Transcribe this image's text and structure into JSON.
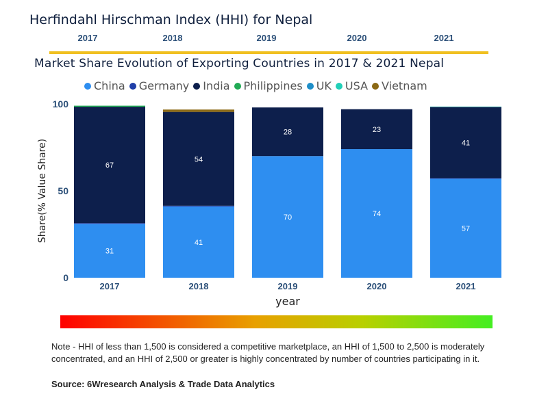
{
  "page_title": "Herfindahl Hirschman Index (HHI) for Nepal",
  "header_years": [
    "2017",
    "2018",
    "2019",
    "2020",
    "2021"
  ],
  "chart_data": {
    "type": "bar",
    "stacked": true,
    "title": "Market Share Evolution of Exporting Countries in 2017 & 2021 Nepal",
    "xlabel": "year",
    "ylabel": "Share(% Value Share)",
    "ylim": [
      0,
      100
    ],
    "yticks": [
      "0",
      "50",
      "100"
    ],
    "categories": [
      "2017",
      "2018",
      "2019",
      "2020",
      "2021"
    ],
    "legend": [
      "China",
      "Germany",
      "India",
      "Philippines",
      "UK",
      "USA",
      "Vietnam"
    ],
    "series": [
      {
        "name": "China",
        "color": "#2e8ef0",
        "values": [
          31,
          41,
          70,
          74,
          57
        ],
        "labels": [
          "31",
          "41",
          "70",
          "74",
          "57"
        ]
      },
      {
        "name": "Germany",
        "color": "#1f3fa8",
        "values": [
          0.4,
          0.4,
          0,
          0,
          0.3
        ],
        "labels": [
          "",
          "",
          "",
          "",
          ""
        ]
      },
      {
        "name": "India",
        "color": "#0d1f4c",
        "values": [
          67,
          54,
          28,
          23,
          41
        ],
        "labels": [
          "67",
          "54",
          "28",
          "23",
          "41"
        ]
      },
      {
        "name": "Philippines",
        "color": "#22aa55",
        "values": [
          0.6,
          0,
          0,
          0,
          0
        ],
        "labels": [
          "",
          "",
          "",
          "",
          ""
        ]
      },
      {
        "name": "UK",
        "color": "#1f8fc9",
        "values": [
          0,
          0,
          0,
          0,
          0
        ],
        "labels": [
          "",
          "",
          "",
          "",
          ""
        ]
      },
      {
        "name": "USA",
        "color": "#22d0b8",
        "values": [
          0,
          0,
          0,
          0,
          0.2
        ],
        "labels": [
          "",
          "",
          "",
          "",
          ""
        ]
      },
      {
        "name": "Vietnam",
        "color": "#8b6914",
        "values": [
          0,
          1.4,
          0,
          0,
          0
        ],
        "labels": [
          "",
          "",
          "",
          "",
          ""
        ]
      }
    ]
  },
  "note": "Note - HHI of less than 1,500 is considered a competitive marketplace, an HHI of 1,500 to 2,500 is moderately concentrated, and an HHI of 2,500 or greater is highly concentrated by number of countries participating in it.",
  "source": "Source: 6Wresearch Analysis & Trade Data Analytics"
}
